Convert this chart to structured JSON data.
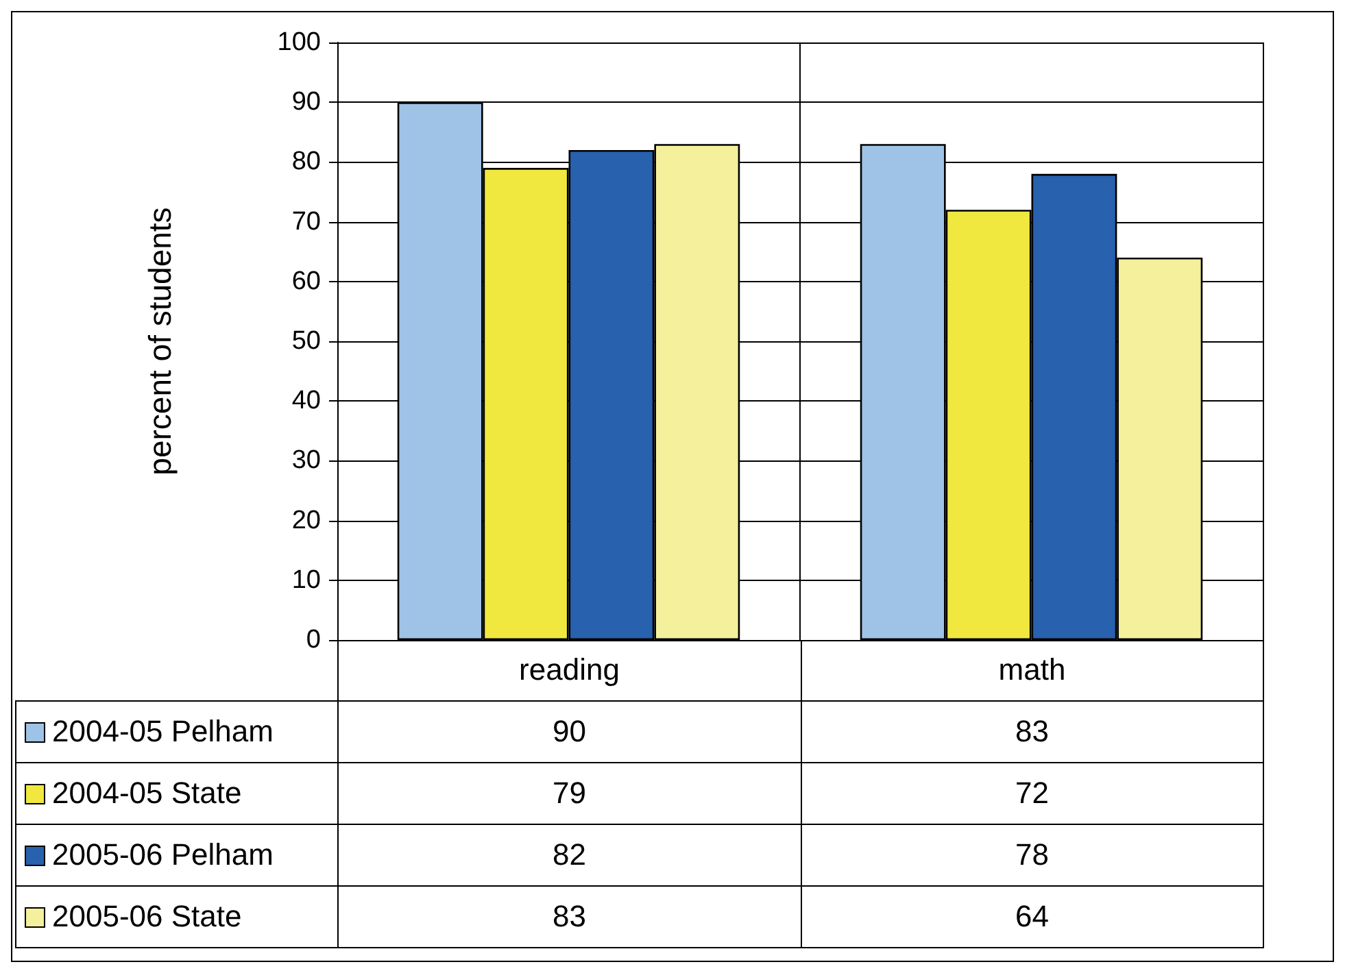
{
  "chart_data": {
    "type": "bar",
    "ylabel": "percent of students",
    "categories": [
      "reading",
      "math"
    ],
    "series": [
      {
        "name": "2004-05 Pelham",
        "color": "#9fc3e7",
        "values": [
          90,
          83
        ]
      },
      {
        "name": "2004-05 State",
        "color": "#f0e83e",
        "values": [
          79,
          72
        ]
      },
      {
        "name": "2005-06 Pelham",
        "color": "#2861ad",
        "values": [
          82,
          78
        ]
      },
      {
        "name": "2005-06 State",
        "color": "#f4f09c",
        "values": [
          83,
          64
        ]
      }
    ],
    "ylim": [
      0,
      100
    ],
    "yticks": [
      0,
      10,
      20,
      30,
      40,
      50,
      60,
      70,
      80,
      90,
      100
    ],
    "grid": true,
    "legend": "bottom",
    "data_labels": true
  }
}
